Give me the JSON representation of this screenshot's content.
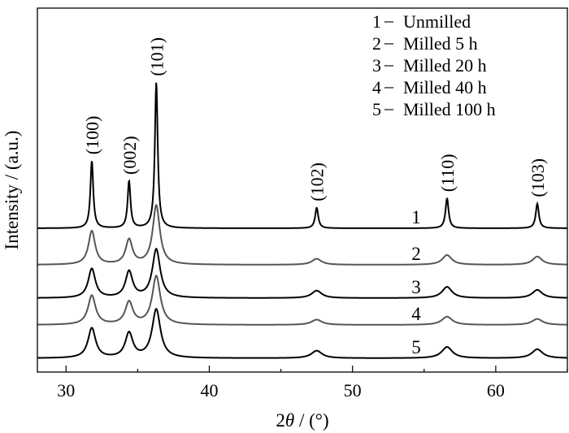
{
  "chart_data": {
    "type": "line",
    "xlabel_prefix": "2",
    "xlabel_theta": "θ",
    "xlabel_suffix": " / (°)",
    "ylabel": "Intensity / (a.u.)",
    "xlim": [
      28,
      65
    ],
    "xticks": [
      30,
      40,
      50,
      60
    ],
    "grid": false,
    "legend_position": "top-right",
    "legend": [
      {
        "num": "1",
        "dash": "–",
        "label": "Unmilled"
      },
      {
        "num": "2",
        "dash": "–",
        "label": "Milled 5 h"
      },
      {
        "num": "3",
        "dash": "–",
        "label": "Milled 20 h"
      },
      {
        "num": "4",
        "dash": "–",
        "label": "Milled 40 h"
      },
      {
        "num": "5",
        "dash": "–",
        "label": "Milled 100 h"
      }
    ],
    "peaks": [
      {
        "label": "(100)",
        "x": 31.8
      },
      {
        "label": "(002)",
        "x": 34.4
      },
      {
        "label": "(101)",
        "x": 36.3
      },
      {
        "label": "(102)",
        "x": 47.5
      },
      {
        "label": "(110)",
        "x": 56.6
      },
      {
        "label": "(103)",
        "x": 62.9
      }
    ],
    "series": [
      {
        "tag": "1",
        "color": "#000000",
        "offset": 4,
        "widths": [
          0.12,
          0.12,
          0.12,
          0.13,
          0.13,
          0.13
        ],
        "heights": [
          1.8,
          1.26,
          3.9,
          0.55,
          0.8,
          0.66
        ]
      },
      {
        "tag": "2",
        "color": "#555555",
        "offset": 3,
        "widths": [
          0.28,
          0.28,
          0.3,
          0.4,
          0.4,
          0.4
        ],
        "heights": [
          0.9,
          0.66,
          1.58,
          0.16,
          0.26,
          0.22
        ]
      },
      {
        "tag": "3",
        "color": "#000000",
        "offset": 2,
        "widths": [
          0.3,
          0.3,
          0.33,
          0.42,
          0.42,
          0.42
        ],
        "heights": [
          0.78,
          0.7,
          1.3,
          0.2,
          0.3,
          0.22
        ]
      },
      {
        "tag": "4",
        "color": "#555555",
        "offset": 1,
        "widths": [
          0.32,
          0.32,
          0.34,
          0.44,
          0.44,
          0.44
        ],
        "heights": [
          0.78,
          0.6,
          1.3,
          0.14,
          0.22,
          0.16
        ]
      },
      {
        "tag": "5",
        "color": "#000000",
        "offset": 0,
        "widths": [
          0.32,
          0.32,
          0.35,
          0.45,
          0.45,
          0.45
        ],
        "heights": [
          0.8,
          0.66,
          1.3,
          0.2,
          0.3,
          0.24
        ]
      }
    ]
  }
}
